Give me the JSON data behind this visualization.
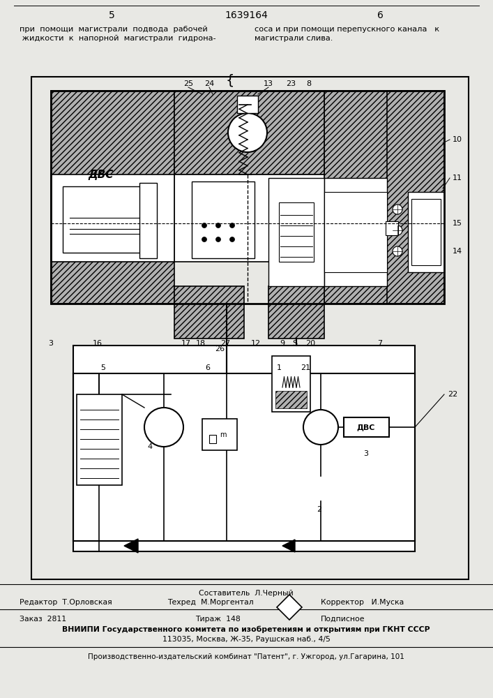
{
  "page_number_left": "5",
  "patent_number": "1639164",
  "page_number_right": "6",
  "text_left_col1": "при  помощи  магистрали  подвода  рабочей",
  "text_left_col2": " жидкости  к  напорной  магистрали  гидрона-",
  "text_right_col1": "соса и при помощи перепускного канала   к",
  "text_right_col2": "магистрали слива.",
  "footer_editor": "Редактор  Т.Орловская",
  "footer_compiler_label": "Составитель  Л.Черный",
  "footer_techred": "Техред  М.Моргентал",
  "footer_corrector": "Корректор   И.Муска",
  "footer_order": "Заказ  2811",
  "footer_edition": "Тираж  148",
  "footer_subscription": "Подписное",
  "footer_vniipи": "ВНИИПИ Государственного комитета по изобретениям и открытиям при ГКНТ СССР",
  "footer_address": "113035, Москва, Ж-35, Раушская наб., 4/5",
  "footer_publisher": "Производственно-издательский комбинат \"Патент\", г. Ужгород, ул.Гагарина, 101",
  "bg_color": "#d8d8d8",
  "paper_color": "#e8e8e4"
}
